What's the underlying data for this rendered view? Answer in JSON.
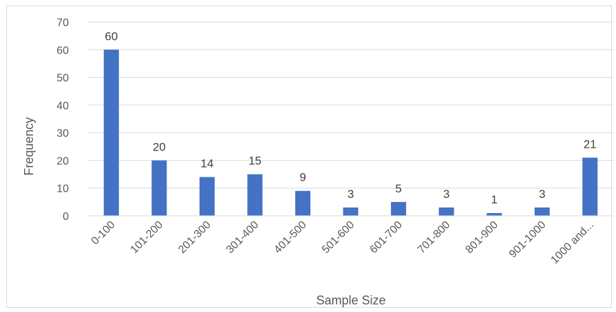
{
  "chart_data": {
    "type": "bar",
    "title": "",
    "xlabel": "Sample Size",
    "ylabel": "Frequency",
    "categories": [
      "0-100",
      "101-200",
      "201-300",
      "301-400",
      "401-500",
      "501-600",
      "601-700",
      "701-800",
      "801-900",
      "901-1000",
      "1000 and..."
    ],
    "values": [
      60,
      20,
      14,
      15,
      9,
      3,
      5,
      3,
      1,
      3,
      21
    ],
    "ylim": [
      0,
      70
    ],
    "yticks": [
      0,
      10,
      20,
      30,
      40,
      50,
      60,
      70
    ],
    "grid": true,
    "legend": "none",
    "bar_color": "#4472C4",
    "gridline_color": "#d9d9d9"
  }
}
